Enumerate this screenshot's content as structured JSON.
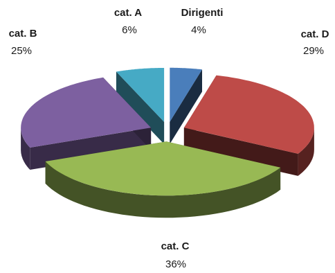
{
  "chart_data": {
    "type": "pie",
    "style": "3d-exploded",
    "title": "",
    "slices": [
      {
        "label": "Dirigenti",
        "percent_label": "4%",
        "value": 4,
        "color": "#4a7ebb"
      },
      {
        "label": "cat. D",
        "percent_label": "29%",
        "value": 29,
        "color": "#be4b48"
      },
      {
        "label": "cat. C",
        "percent_label": "36%",
        "value": 36,
        "color": "#98b954"
      },
      {
        "label": "cat. B",
        "percent_label": "25%",
        "value": 25,
        "color": "#7d60a0"
      },
      {
        "label": "cat. A",
        "percent_label": "6%",
        "value": 6,
        "color": "#46aac5"
      }
    ]
  }
}
